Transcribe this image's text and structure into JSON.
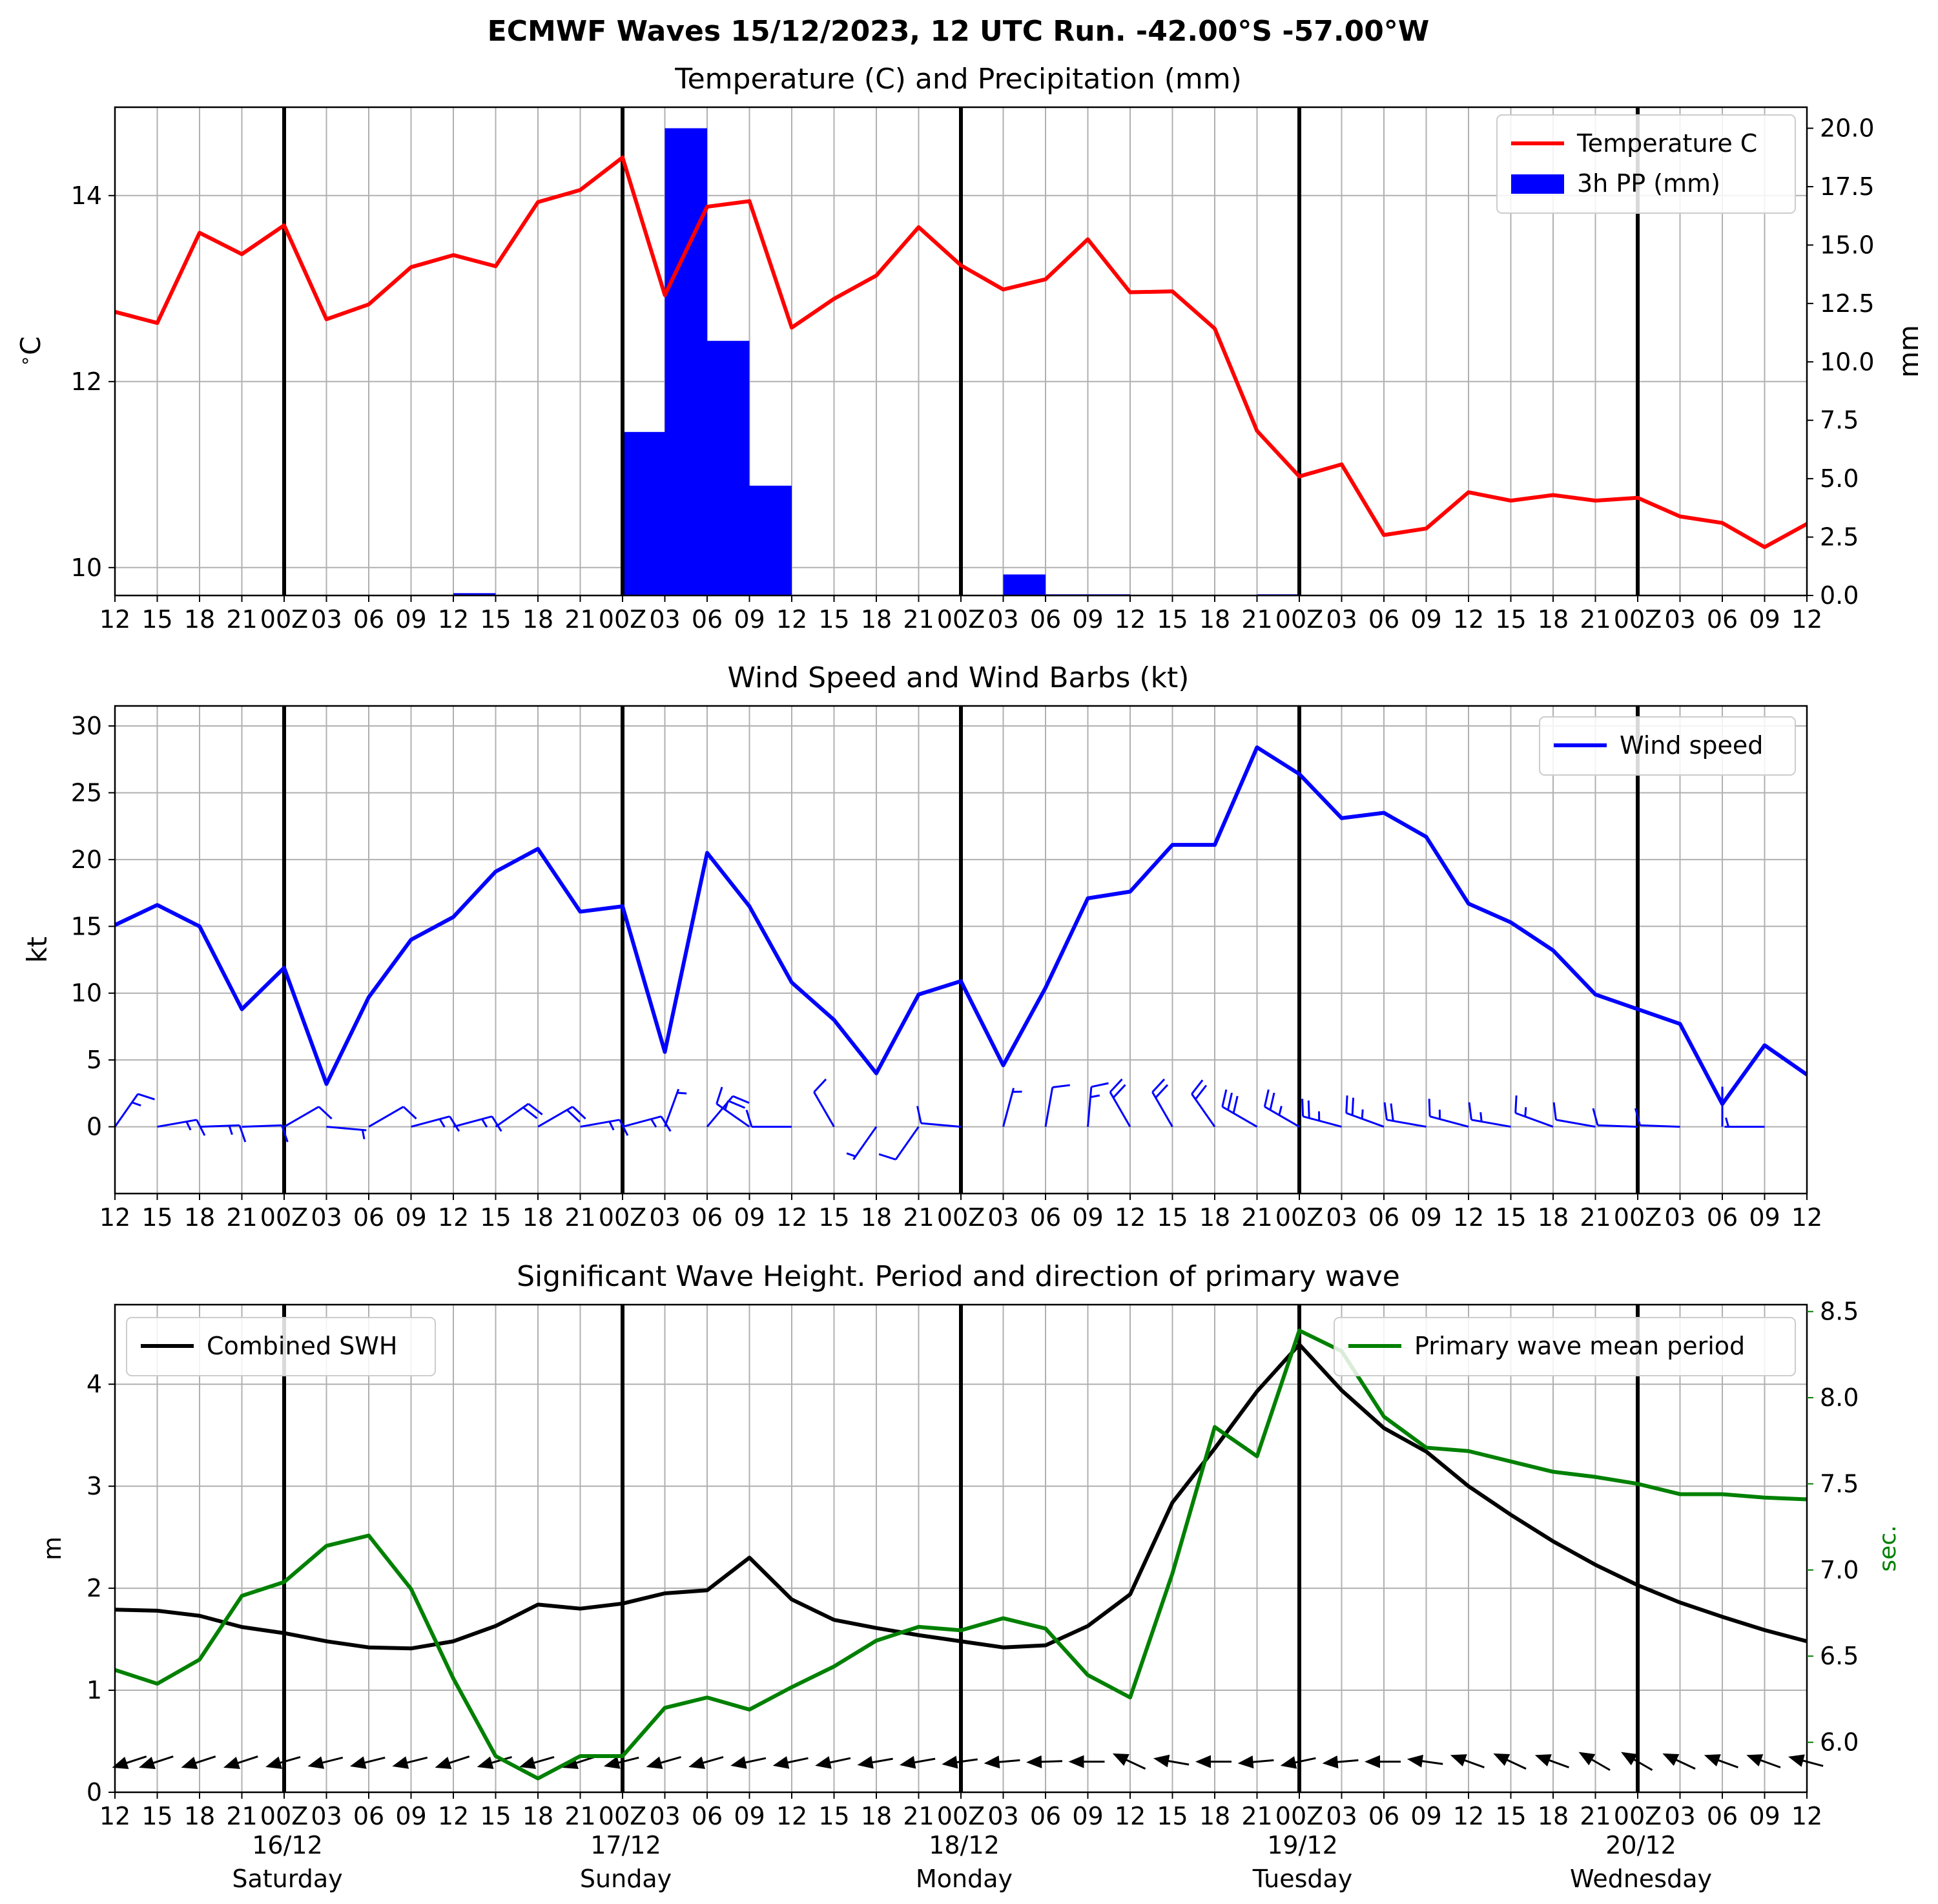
{
  "suptitle": "ECMWF Waves 15/12/2023, 12 UTC Run. -42.00°S -57.00°W",
  "time_ticks": [
    "12",
    "15",
    "18",
    "21",
    "00Z",
    "03",
    "06",
    "09",
    "12",
    "15",
    "18",
    "21",
    "00Z",
    "03",
    "06",
    "09",
    "12",
    "15",
    "18",
    "21",
    "00Z",
    "03",
    "06",
    "09",
    "12",
    "15",
    "18",
    "21",
    "00Z",
    "03",
    "06",
    "09",
    "12",
    "15",
    "18",
    "21",
    "00Z",
    "03",
    "06",
    "09",
    "12"
  ],
  "day_labels": [
    {
      "date": "16/12",
      "day": "Saturday"
    },
    {
      "date": "17/12",
      "day": "Sunday"
    },
    {
      "date": "18/12",
      "day": "Monday"
    },
    {
      "date": "19/12",
      "day": "Tuesday"
    },
    {
      "date": "20/12",
      "day": "Wednesday"
    }
  ],
  "day_boundary_indices": [
    4,
    12,
    20,
    28,
    36
  ],
  "colors": {
    "temperature": "#ff0000",
    "precip": "#0000ff",
    "wind": "#0000ff",
    "swh": "#000000",
    "period": "#008000",
    "grid": "#b0b0b0"
  },
  "chart_data": [
    {
      "type": "line",
      "title": "Temperature (C) and Precipitation (mm)",
      "ylabel": "$^\\circ$C",
      "ylabel_right": "mm",
      "ylim": [
        9.7,
        14.95
      ],
      "ylim_right": [
        0,
        20.9
      ],
      "yticks": [
        "10",
        "12",
        "14"
      ],
      "yticks_right": [
        "0.0",
        "2.5",
        "5.0",
        "7.5",
        "10.0",
        "12.5",
        "15.0",
        "17.5",
        "20.0"
      ],
      "legend_position": "upper right",
      "series": [
        {
          "name": "Temperature C",
          "kind": "line",
          "axis": "left",
          "values": [
            12.75,
            12.63,
            13.6,
            13.37,
            13.68,
            12.67,
            12.83,
            13.23,
            13.36,
            13.24,
            13.93,
            14.06,
            14.41,
            12.93,
            13.88,
            13.94,
            12.58,
            12.89,
            13.14,
            13.66,
            13.25,
            12.99,
            13.1,
            13.53,
            12.96,
            12.97,
            12.57,
            11.47,
            10.98,
            11.11,
            10.35,
            10.42,
            10.81,
            10.72,
            10.78,
            10.72,
            10.75,
            10.55,
            10.48,
            10.22,
            10.47
          ]
        },
        {
          "name": "3h PP (mm)",
          "kind": "bar",
          "axis": "right",
          "values": [
            0,
            0,
            0,
            0,
            0,
            0,
            0,
            0,
            0.1,
            0,
            0,
            0,
            7.0,
            20.0,
            10.9,
            4.7,
            0,
            0,
            0,
            0,
            0,
            0.9,
            0.05,
            0.05,
            0,
            0,
            0,
            0.05,
            0,
            0,
            0,
            0,
            0,
            0,
            0,
            0,
            0,
            0,
            0,
            0
          ]
        }
      ]
    },
    {
      "type": "line",
      "title": "Wind Speed and Wind Barbs (kt)",
      "ylabel": "kt",
      "ylim": [
        -5,
        31.5
      ],
      "yticks": [
        "0",
        "5",
        "10",
        "15",
        "20",
        "25",
        "30"
      ],
      "legend_position": "upper right",
      "series": [
        {
          "name": "Wind speed",
          "values": [
            15.1,
            16.6,
            15.0,
            8.8,
            11.9,
            3.2,
            9.7,
            14.0,
            15.7,
            19.1,
            20.8,
            16.1,
            16.5,
            5.6,
            20.5,
            16.5,
            10.8,
            8.0,
            4.0,
            9.9,
            10.9,
            4.6,
            10.4,
            17.1,
            17.6,
            21.1,
            21.1,
            28.4,
            26.4,
            23.1,
            23.5,
            21.7,
            16.7,
            15.3,
            13.2,
            9.9,
            8.8,
            7.7,
            1.7,
            6.1,
            3.9
          ]
        }
      ],
      "wind_barbs": {
        "description": "wind barbs plotted along y=0 at each 3h step",
        "speed_kt": [
          15.1,
          16.6,
          15.0,
          8.8,
          11.9,
          3.2,
          9.7,
          14.0,
          15.7,
          19.1,
          20.8,
          16.1,
          16.5,
          5.6,
          20.5,
          16.5,
          10.8,
          8.0,
          4.0,
          9.9,
          10.9,
          4.6,
          10.4,
          17.1,
          17.6,
          21.1,
          21.1,
          28.4,
          26.4,
          23.1,
          23.5,
          21.7,
          16.7,
          15.3,
          13.2,
          9.9,
          8.8,
          7.7,
          1.7,
          6.1
        ],
        "barb_angle_deg": [
          35,
          80,
          88,
          88,
          60,
          95,
          60,
          75,
          75,
          55,
          60,
          80,
          75,
          20,
          40,
          305,
          270,
          330,
          215,
          215,
          275,
          15,
          10,
          5,
          330,
          330,
          325,
          300,
          300,
          285,
          290,
          280,
          285,
          280,
          290,
          280,
          272,
          272,
          0,
          270
        ]
      }
    },
    {
      "type": "line",
      "title": "Significant Wave Height. Period and direction of primary wave",
      "ylabel": "m",
      "ylabel_right": "sec.",
      "ylim": [
        0,
        4.78
      ],
      "ylim_right": [
        5.71,
        8.54
      ],
      "yticks": [
        "0",
        "1",
        "2",
        "3",
        "4"
      ],
      "yticks_right": [
        "6.0",
        "6.5",
        "7.0",
        "7.5",
        "8.0",
        "8.5"
      ],
      "legend_left": "upper left",
      "legend_right": "upper right",
      "series": [
        {
          "name": "Combined SWH",
          "axis": "left",
          "values": [
            1.79,
            1.78,
            1.73,
            1.62,
            1.56,
            1.48,
            1.42,
            1.41,
            1.48,
            1.63,
            1.84,
            1.8,
            1.85,
            1.95,
            1.98,
            2.3,
            1.89,
            1.69,
            1.61,
            1.54,
            1.48,
            1.42,
            1.44,
            1.63,
            1.94,
            2.84,
            3.37,
            3.93,
            4.39,
            3.94,
            3.57,
            3.34,
            3.0,
            2.72,
            2.46,
            2.23,
            2.03,
            1.86,
            1.72,
            1.59,
            1.48
          ]
        },
        {
          "name": "Primary wave mean period",
          "axis": "right",
          "values": [
            6.42,
            6.34,
            6.48,
            6.85,
            6.93,
            7.14,
            7.2,
            6.89,
            6.37,
            5.92,
            5.79,
            5.92,
            5.92,
            6.2,
            6.26,
            6.19,
            6.32,
            6.44,
            6.59,
            6.67,
            6.65,
            6.72,
            6.66,
            6.39,
            6.26,
            6.98,
            7.83,
            7.66,
            8.39,
            8.27,
            7.89,
            7.71,
            7.69,
            7.63,
            7.57,
            7.54,
            7.5,
            7.44,
            7.44,
            7.42,
            7.41
          ]
        }
      ],
      "wave_direction_arrows": {
        "description": "primary wave direction arrows plotted along y=0.3",
        "angle_deg": [
          18,
          18,
          18,
          18,
          16,
          14,
          14,
          14,
          18,
          16,
          16,
          18,
          14,
          16,
          16,
          12,
          12,
          12,
          10,
          10,
          8,
          5,
          2,
          0,
          335,
          350,
          0,
          5,
          12,
          5,
          0,
          352,
          340,
          335,
          340,
          330,
          330,
          335,
          340,
          340,
          345
        ]
      }
    }
  ]
}
